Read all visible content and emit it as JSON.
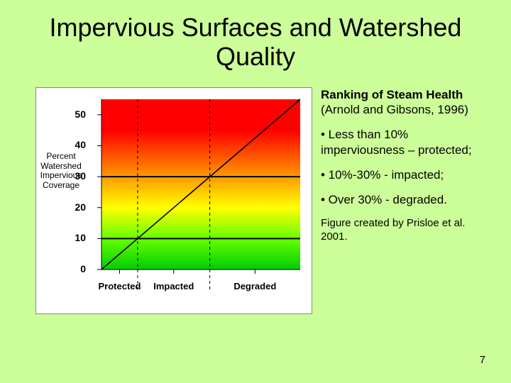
{
  "slide": {
    "title": "Impervious Surfaces and Watershed Quality",
    "number": "7",
    "background_color": "#ccff99"
  },
  "text": {
    "heading_bold": "Ranking of Steam Health",
    "heading_rest": " (Arnold and Gibsons, 1996)",
    "bullet1": "• Less than 10% imperviousness – protected;",
    "bullet2": "• 10%-30% - impacted;",
    "bullet3": "• Over 30% - degraded.",
    "citation": "Figure created by Prisloe et al. 2001."
  },
  "chart": {
    "type": "line",
    "y_axis_label": "Percent Watershed Impervious Coverage",
    "y_ticks": [
      0,
      10,
      20,
      30,
      40,
      50
    ],
    "ylim": [
      0,
      55
    ],
    "x_categories": [
      "Protected",
      "Impacted",
      "Degraded"
    ],
    "x_dividers": [
      0.182,
      0.545
    ],
    "thresholds": {
      "impacted_start": 10,
      "degraded_start": 30
    },
    "gradient_stops": [
      {
        "y": 0,
        "color": "#00cc00"
      },
      {
        "y": 10,
        "color": "#66ff00"
      },
      {
        "y": 20,
        "color": "#ffff00"
      },
      {
        "y": 30,
        "color": "#ff9900"
      },
      {
        "y": 45,
        "color": "#ff0000"
      },
      {
        "y": 55,
        "color": "#ff0000"
      }
    ],
    "background_color": "#ffffff",
    "line_color": "#000000",
    "diag_points": [
      [
        0,
        0
      ],
      [
        1,
        55
      ]
    ]
  }
}
